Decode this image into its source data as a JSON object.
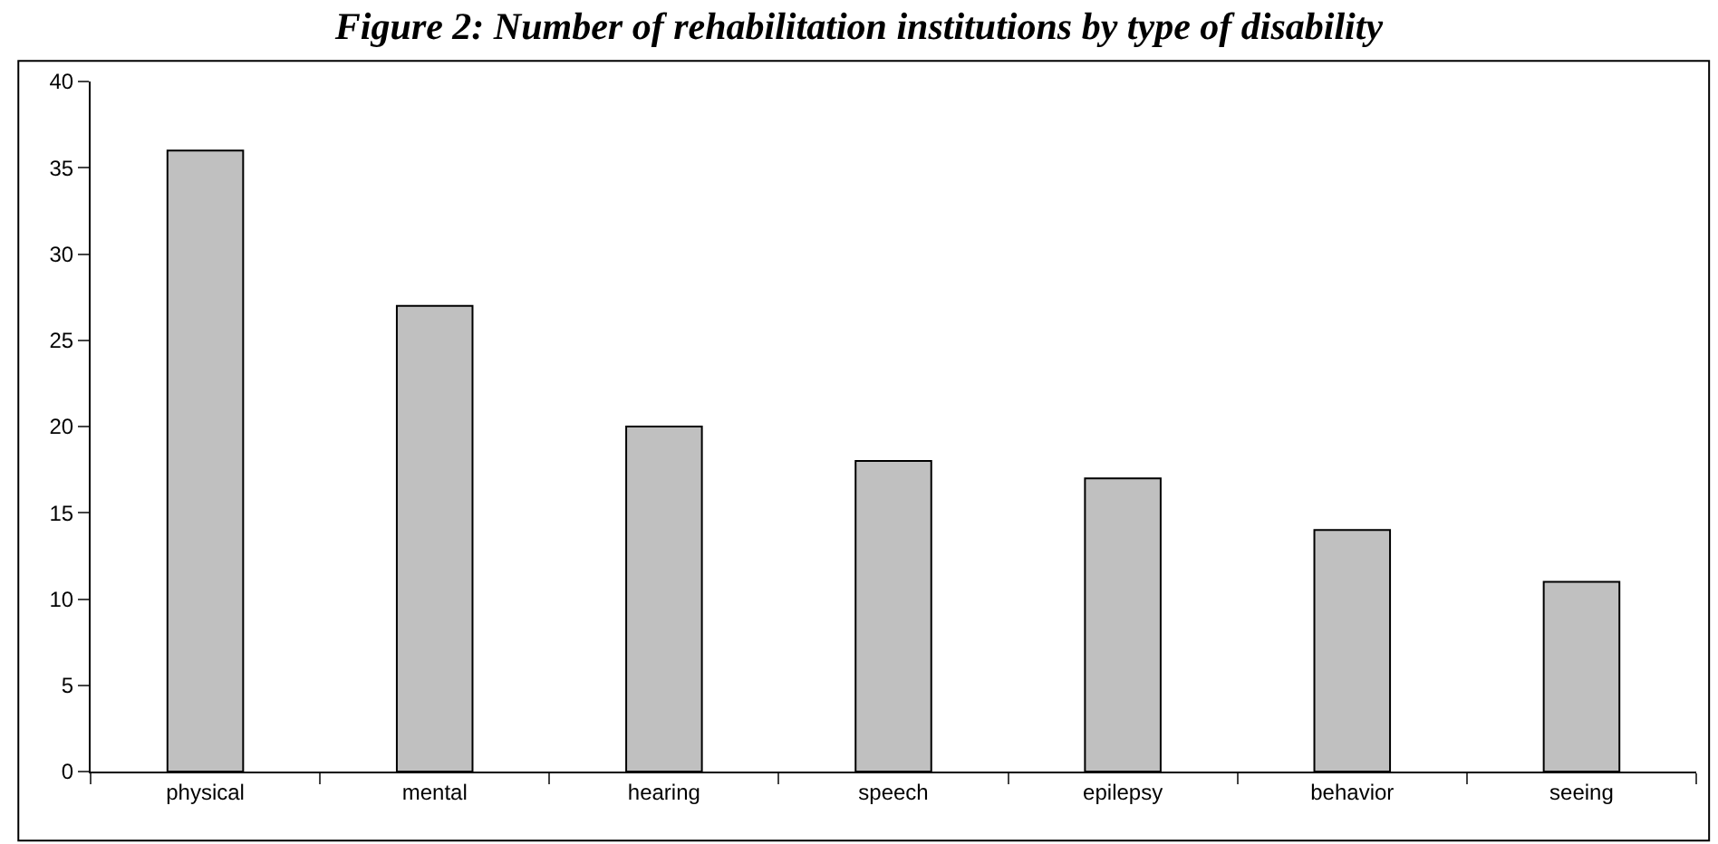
{
  "chart_data": {
    "type": "bar",
    "title": "Figure 2: Number of rehabilitation institutions by type of disability",
    "categories": [
      "physical",
      "mental",
      "hearing",
      "speech",
      "epilepsy",
      "behavior",
      "seeing"
    ],
    "values": [
      36,
      27,
      20,
      18,
      17,
      14,
      11
    ],
    "color": "#c0c0c0",
    "ylim": [
      0,
      40
    ],
    "yticks": [
      0,
      5,
      10,
      15,
      20,
      25,
      30,
      35,
      40
    ],
    "grid": false
  }
}
